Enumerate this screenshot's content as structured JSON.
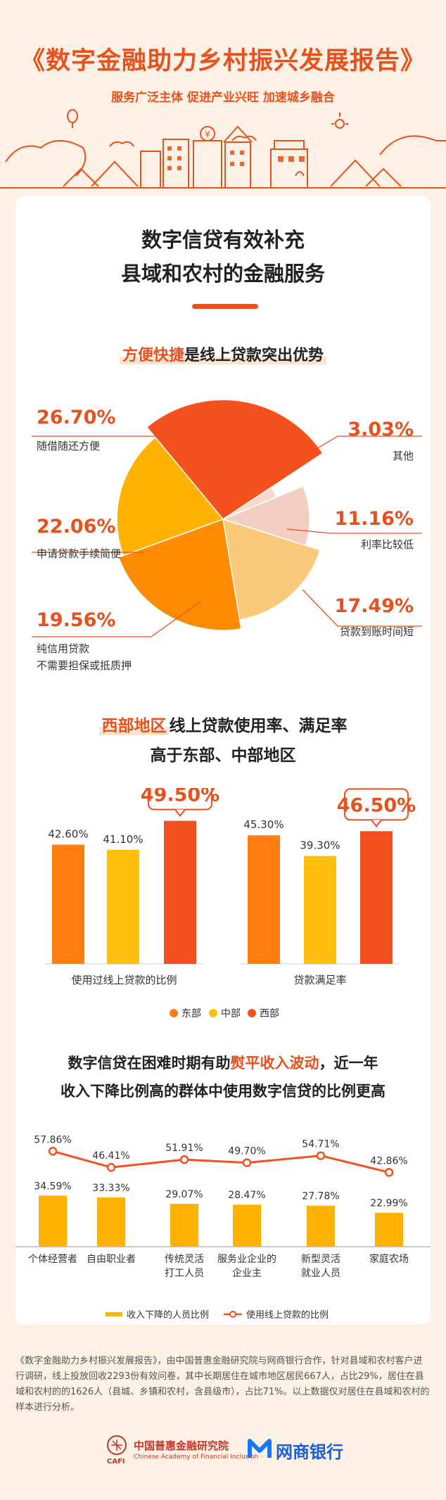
{
  "header": {
    "title": "《数字金融助力乡村振兴发展报告》",
    "subtitle": "服务广泛主体 促进产业兴旺 加速城乡融合"
  },
  "section1": {
    "title_line1": "数字信贷有效补充",
    "title_line2": "县域和农村的金融服务",
    "pie_title_em": "方便快捷",
    "pie_title_rest": "是线上贷款突出优势",
    "pie_slices": [
      {
        "pct": "26.70%",
        "label": "随借随还方便",
        "value": 26.7,
        "color": "#f4511e"
      },
      {
        "pct": "3.03%",
        "label": "其他",
        "value": 3.03,
        "color": "#f9d9cb"
      },
      {
        "pct": "11.16%",
        "label": "利率比较低",
        "value": 11.16,
        "color": "#f2cfc0"
      },
      {
        "pct": "17.49%",
        "label": "贷款到账时间短",
        "value": 17.49,
        "color": "#fbc97a"
      },
      {
        "pct": "22.06%",
        "label": "申请贷款手续简便",
        "value": 22.06,
        "color": "#ff8c00"
      },
      {
        "pct": "19.56%",
        "label": "纯信用贷款",
        "label2": "不需要担保或抵质押",
        "value": 19.56,
        "color": "#ffb300"
      }
    ]
  },
  "section2": {
    "title_em": "西部地区",
    "title_rest": "线上贷款使用率、满足率",
    "title_line2": "高于东部、中部地区",
    "chart_data": {
      "type": "bar",
      "groups": [
        "使用过线上贷款的比例",
        "贷款满足率"
      ],
      "series": [
        {
          "name": "东部",
          "color": "#ff7f0e",
          "values": [
            42.6,
            45.3
          ],
          "labels": [
            "42.60%",
            "45.30%"
          ]
        },
        {
          "name": "中部",
          "color": "#ffbe0b",
          "values": [
            41.1,
            39.3
          ],
          "labels": [
            "41.10%",
            "39.30%"
          ]
        },
        {
          "name": "西部",
          "color": "#f4511e",
          "values": [
            49.5,
            46.5
          ],
          "labels": [
            "49.50%",
            "46.50%"
          ]
        }
      ]
    }
  },
  "section3": {
    "title_pre": "数字信贷在困难时期有助",
    "title_em": "熨平收入波动",
    "title_post": "，近一年",
    "title_line2": "收入下降比例高的群体中使用数字信贷的比例更高",
    "chart_data": {
      "type": "bar+line",
      "categories": [
        [
          "个体经营者"
        ],
        [
          "自由职业者"
        ],
        [
          "传统灵活",
          "打工人员"
        ],
        [
          "服务业企业的",
          "企业主"
        ],
        [
          "新型灵活",
          "就业人员"
        ],
        [
          "家庭农场"
        ]
      ],
      "series": [
        {
          "name": "收入下降的人员比例",
          "type": "bar",
          "color": "#ffb300",
          "values": [
            34.59,
            33.33,
            29.07,
            28.47,
            27.78,
            22.99
          ],
          "labels": [
            "34.59%",
            "33.33%",
            "29.07%",
            "28.47%",
            "27.78%",
            "22.99%"
          ]
        },
        {
          "name": "使用线上贷款的比例",
          "type": "line",
          "color": "#f4511e",
          "values": [
            57.86,
            46.41,
            51.91,
            49.7,
            54.71,
            42.86
          ],
          "labels": [
            "57.86%",
            "46.41%",
            "51.91%",
            "49.70%",
            "54.71%",
            "42.86%"
          ]
        }
      ]
    }
  },
  "footer": {
    "note": "《数字金融助力乡村振兴发展报告》，由中国普惠金融研究院与网商银行合作，针对县域和农村客户进行调研，线上投放回收2293份有效问卷，其中长期居住在城市地区居民667人，占比29%，居住在县域和农村的的1626人（县城、乡镇和农村，含县级市），占比71%。以上数据仅对居住在县域和农村的样本进行分析。",
    "logo1_cn": "中国普惠金融研究院",
    "logo1_en": "Chinese Academy of Financial Inclusion",
    "logo1_abbr": "CAFI",
    "logo2": "网商银行"
  },
  "colors": {
    "accent": "#e8501c",
    "bg": "#fcf1e4"
  }
}
